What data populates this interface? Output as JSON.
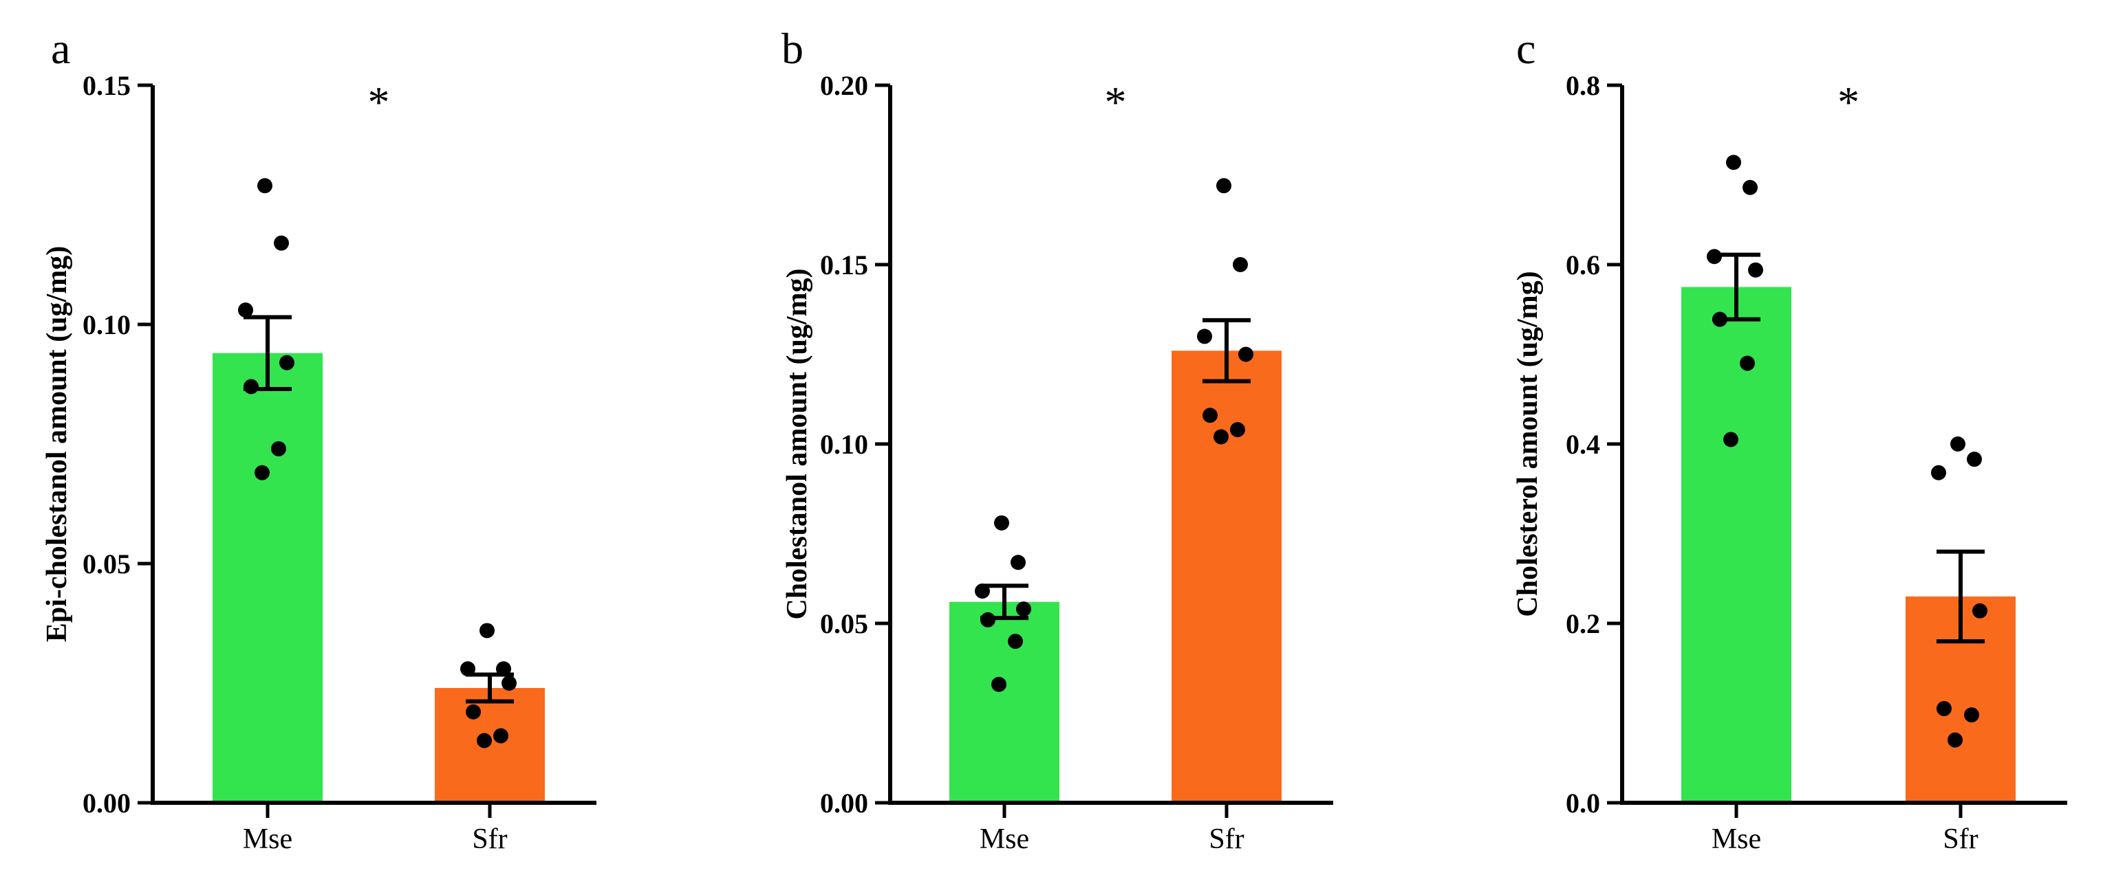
{
  "colors": {
    "Mse": "#33e44f",
    "Sfr": "#fa6a1c",
    "axis": "#000000",
    "point": "#000000"
  },
  "chart_data": [
    {
      "type": "bar",
      "panel": "a",
      "categories": [
        "Mse",
        "Sfr"
      ],
      "values": [
        0.094,
        0.024
      ],
      "errors": [
        0.0075,
        0.0028
      ],
      "points": [
        [
          0.129,
          0.117,
          0.103,
          0.092,
          0.087,
          0.074,
          0.069
        ],
        [
          0.036,
          0.028,
          0.028,
          0.025,
          0.019,
          0.014,
          0.013
        ]
      ],
      "ylabel": "Epi-cholestanol amount (ug/mg)",
      "ylim": [
        0,
        0.15
      ],
      "yticks": [
        "0.00",
        "0.05",
        "0.10",
        "0.15"
      ],
      "significance": "*"
    },
    {
      "type": "bar",
      "panel": "b",
      "categories": [
        "Mse",
        "Sfr"
      ],
      "values": [
        0.056,
        0.126
      ],
      "errors": [
        0.0045,
        0.0085
      ],
      "points": [
        [
          0.078,
          0.067,
          0.059,
          0.054,
          0.051,
          0.045,
          0.033
        ],
        [
          0.172,
          0.15,
          0.13,
          0.125,
          0.108,
          0.104,
          0.102
        ]
      ],
      "ylabel": "Cholestanol amount (ug/mg)",
      "ylim": [
        0,
        0.2
      ],
      "yticks": [
        "0.00",
        "0.05",
        "0.10",
        "0.15",
        "0.20"
      ],
      "significance": "*"
    },
    {
      "type": "bar",
      "panel": "c",
      "categories": [
        "Mse",
        "Sfr"
      ],
      "values": [
        0.575,
        0.23
      ],
      "errors": [
        0.036,
        0.05
      ],
      "points": [
        [
          0.714,
          0.686,
          0.609,
          0.594,
          0.539,
          0.49,
          0.405
        ],
        [
          0.4,
          0.383,
          0.368,
          0.214,
          0.105,
          0.098,
          0.07
        ]
      ],
      "ylabel": "Cholesterol amount (ug/mg)",
      "ylim": [
        0,
        0.8
      ],
      "yticks": [
        "0.0",
        "0.2",
        "0.4",
        "0.6",
        "0.8"
      ],
      "significance": "*"
    }
  ]
}
